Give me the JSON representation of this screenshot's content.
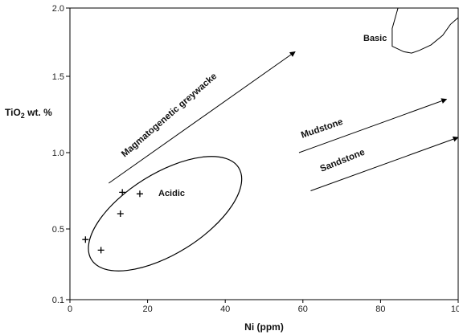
{
  "chart_data": {
    "type": "scatter",
    "xlabel": "Ni (ppm)",
    "ylabel_main": "TiO",
    "ylabel_sub": "2",
    "ylabel_rest": " wt. %",
    "xlim": [
      0,
      100
    ],
    "ylim": [
      0.1,
      2.0
    ],
    "xticks": [
      0,
      20,
      40,
      60,
      80,
      100
    ],
    "yticks": [
      {
        "value": 0.1,
        "label": "0.1"
      },
      {
        "value": 0.5,
        "label": "0.5"
      },
      {
        "value": 1.0,
        "label": "1.0"
      },
      {
        "value": 1.5,
        "label": "1.5"
      },
      {
        "value": 2.0,
        "label": "2.0"
      }
    ],
    "points": [
      {
        "x": 4,
        "y": 0.44
      },
      {
        "x": 8,
        "y": 0.38
      },
      {
        "x": 13,
        "y": 0.6
      },
      {
        "x": 13.5,
        "y": 0.74
      },
      {
        "x": 18,
        "y": 0.73
      }
    ],
    "trends": [
      {
        "label": "Magmatogenetic greywacke",
        "from": [
          10,
          0.8
        ],
        "to": [
          58,
          1.68
        ]
      },
      {
        "label": "Mudstone",
        "from": [
          59,
          1.0
        ],
        "to": [
          97,
          1.35
        ]
      },
      {
        "label": "Sandstone",
        "from": [
          62,
          0.75
        ],
        "to": [
          100,
          1.1
        ]
      }
    ],
    "regions": [
      {
        "label": "Acidic",
        "center": [
          24.5,
          0.6
        ],
        "rx": 47,
        "ry": 0.32,
        "rotation": 32
      }
    ],
    "basic_field": {
      "label": "Basic",
      "outline": [
        [
          84.5,
          2.0
        ],
        [
          83,
          1.85
        ],
        [
          83,
          1.72
        ],
        [
          86,
          1.68
        ],
        [
          88,
          1.67
        ],
        [
          90,
          1.69
        ],
        [
          93,
          1.73
        ],
        [
          96,
          1.8
        ],
        [
          98,
          1.88
        ],
        [
          100,
          1.93
        ],
        [
          102,
          1.95
        ],
        [
          105,
          1.96
        ],
        [
          106,
          1.95
        ]
      ]
    }
  }
}
